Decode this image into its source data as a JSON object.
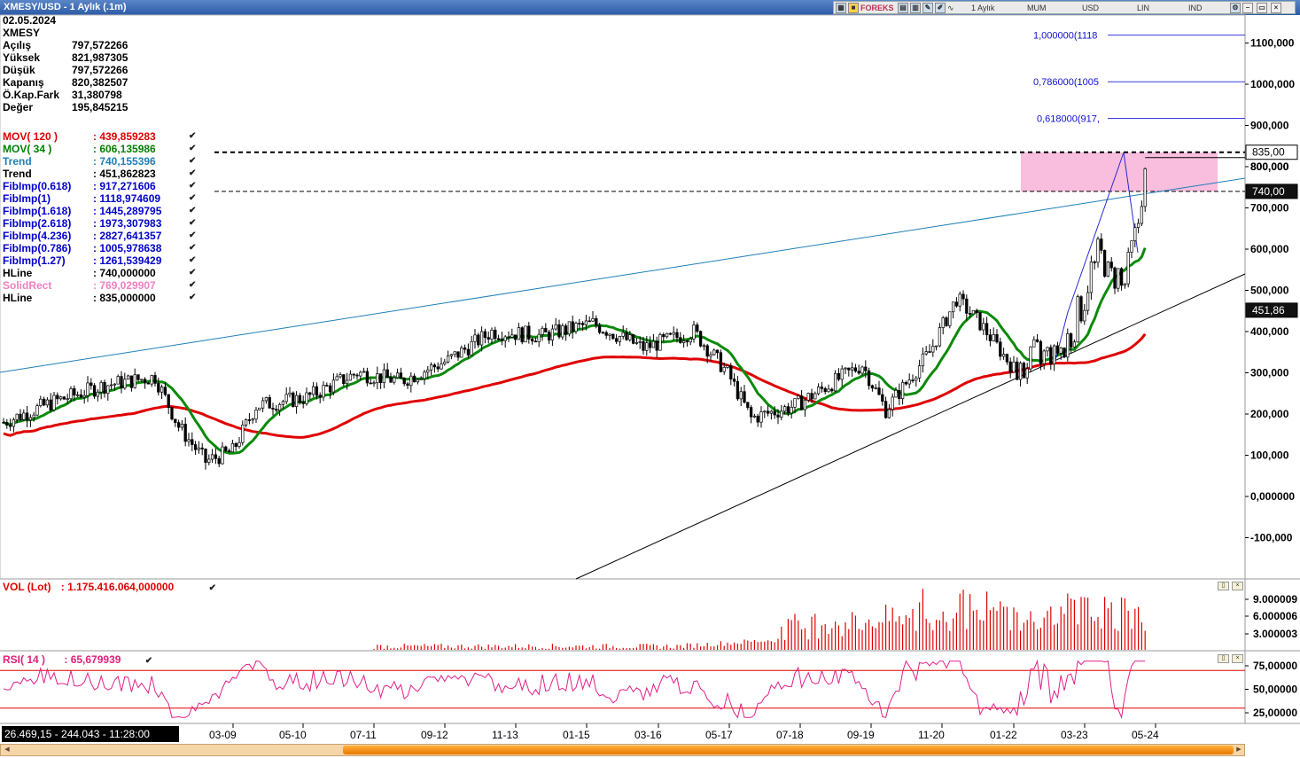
{
  "window": {
    "title": "XMESY/USD - 1 Aylık (.1m)",
    "toolbar": {
      "period": "1 Aylık",
      "type": "MUM",
      "currency": "USD",
      "scale": "LIN",
      "ind": "IND",
      "brand": "FOREKS"
    }
  },
  "info": {
    "date": "02.05.2024",
    "symbol": "XMESY",
    "rows": [
      {
        "label": "Açılış",
        "value": "797,572266"
      },
      {
        "label": "Yüksek",
        "value": "821,987305"
      },
      {
        "label": "Düşük",
        "value": "797,572266"
      },
      {
        "label": "Kapanış",
        "value": "820,382507"
      },
      {
        "label": "Ö.Kap.Fark",
        "value": "31,380798"
      },
      {
        "label": "Değer",
        "value": "195,845215"
      }
    ]
  },
  "indicators": [
    {
      "label": "MOV( 120 )",
      "value": ": 439,859283",
      "color": "#e00000"
    },
    {
      "label": "MOV( 34 )",
      "value": ": 606,135986",
      "color": "#008000"
    },
    {
      "label": "Trend",
      "value": ": 740,155396",
      "color": "#1e7fb8"
    },
    {
      "label": "Trend",
      "value": ": 451,862823",
      "color": "#000000"
    },
    {
      "label": "FibImp(0.618)",
      "value": ": 917,271606",
      "color": "#0000cc"
    },
    {
      "label": "FibImp(1)",
      "value": ": 1118,974609",
      "color": "#0000cc"
    },
    {
      "label": "FibImp(1.618)",
      "value": ": 1445,289795",
      "color": "#0000cc"
    },
    {
      "label": "FibImp(2.618)",
      "value": ": 1973,307983",
      "color": "#0000cc"
    },
    {
      "label": "FibImp(4.236)",
      "value": ": 2827,641357",
      "color": "#0000cc"
    },
    {
      "label": "FibImp(0.786)",
      "value": ": 1005,978638",
      "color": "#0000cc"
    },
    {
      "label": "FibImp(1.27)",
      "value": ": 1261,539429",
      "color": "#0000cc"
    },
    {
      "label": "HLine",
      "value": ": 740,000000",
      "color": "#000000"
    },
    {
      "label": "SolidRect",
      "value": ": 769,029907",
      "color": "#f080c0"
    },
    {
      "label": "HLine",
      "value": ": 835,000000",
      "color": "#000000"
    }
  ],
  "fib_labels": [
    "1,000000(1118",
    "0,786000(1005",
    "0,618000(917,"
  ],
  "price_axis": [
    "1100,000",
    "1000,000",
    "900,000",
    "800,000",
    "700,000",
    "600,000",
    "500,000",
    "400,000",
    "300,000",
    "200,000",
    "100,000",
    "0,000000",
    "-100,000"
  ],
  "price_tags": [
    {
      "text": "835,00",
      "style": "outline"
    },
    {
      "text": "740,00",
      "style": "dark"
    },
    {
      "text": "451,86",
      "style": "dark"
    }
  ],
  "volume": {
    "title": "VOL (Lot)",
    "value": ": 1.175.416.064,000000",
    "axis": [
      "9.000009",
      "6.000006",
      "3.000003"
    ]
  },
  "rsi": {
    "title": "RSI( 14 )",
    "value": ": 65,679939",
    "axis": [
      "75,00000",
      "50,00000",
      "25,00000"
    ]
  },
  "time_axis": [
    "03-09",
    "05-10",
    "07-11",
    "09-12",
    "11-13",
    "01-15",
    "03-16",
    "05-17",
    "07-18",
    "09-19",
    "11-20",
    "01-22",
    "03-23",
    "05-24"
  ],
  "status_text": "26.469,15 - 244.043 - 11:28:00",
  "chart_data": {
    "type": "candlestick",
    "title": "XMESY/USD - 1 Aylık (.1m)",
    "ylim": [
      -150,
      1200
    ],
    "last": {
      "open": 797.572266,
      "high": 821.987305,
      "low": 797.572266,
      "close": 820.382507
    },
    "series": [
      {
        "name": "MOV( 120 )",
        "color": "#e00000",
        "last": 439.859283
      },
      {
        "name": "MOV( 34 )",
        "color": "#008000",
        "last": 606.135986
      },
      {
        "name": "Trend",
        "color": "#1e7fb8",
        "last": 740.155396
      },
      {
        "name": "Trend",
        "color": "#000000",
        "last": 451.862823
      }
    ],
    "hlines": [
      835,
      740
    ],
    "fib_levels": [
      1118.974609,
      1005.978638,
      917.271606
    ],
    "rsi_bands": [
      70,
      30
    ]
  }
}
